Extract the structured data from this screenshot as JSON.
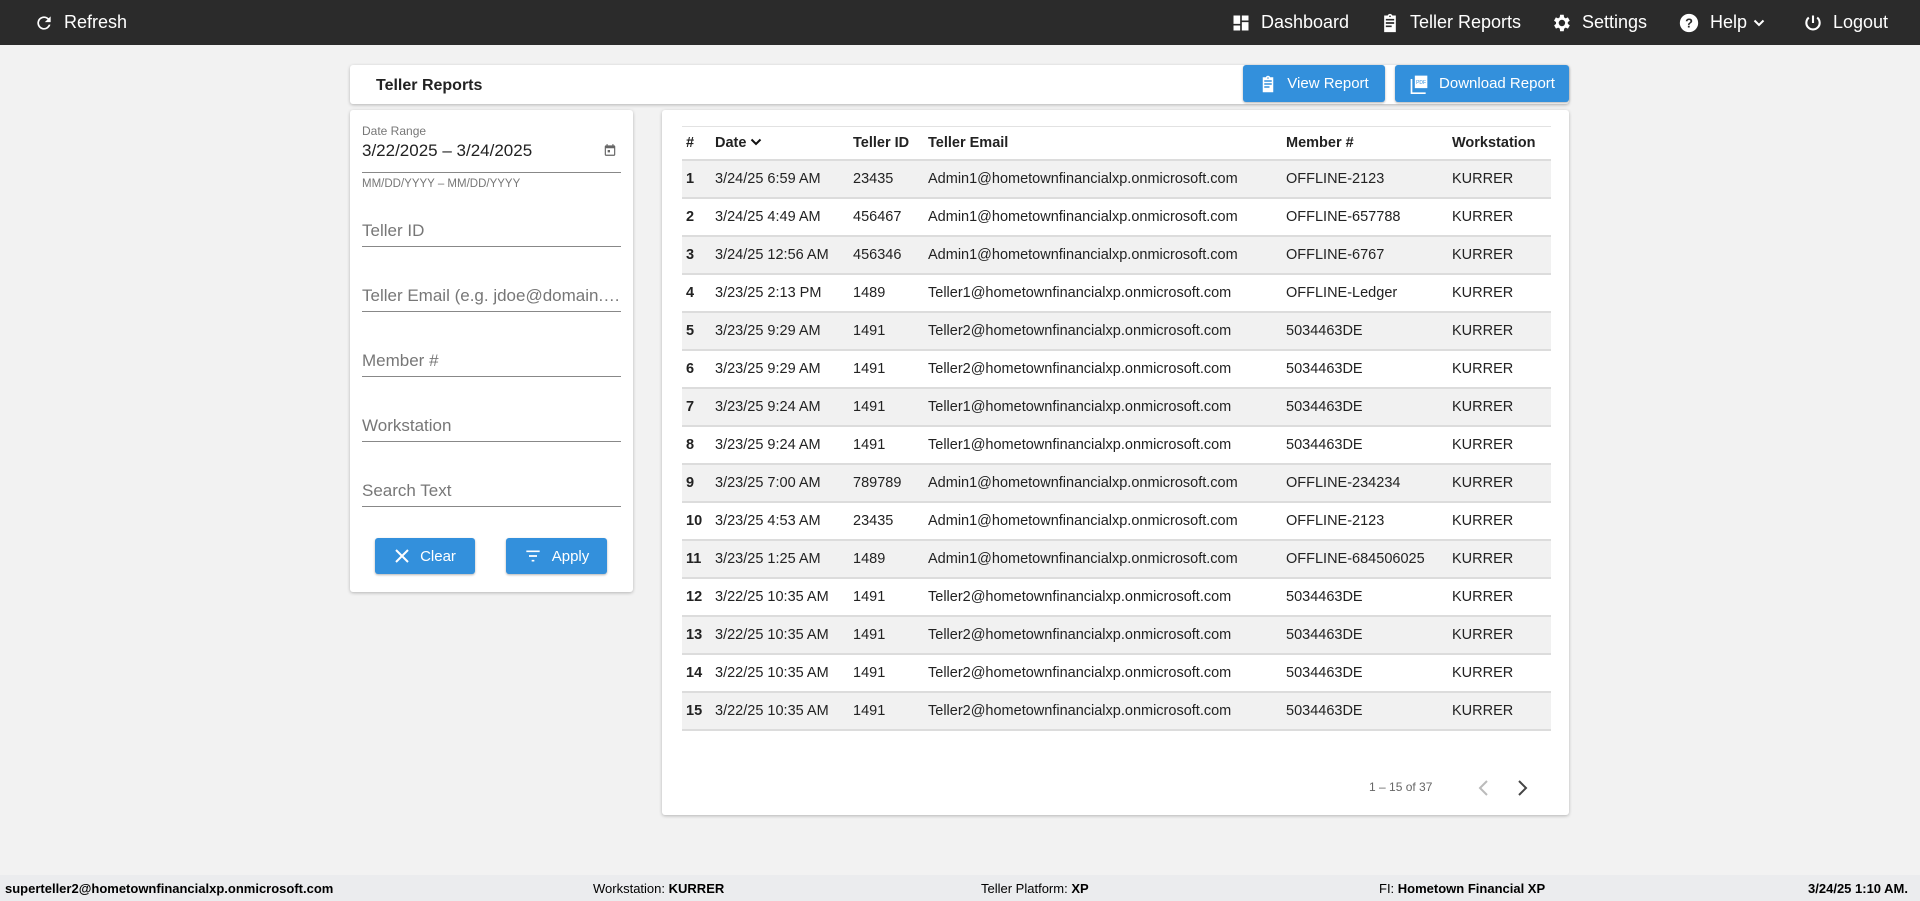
{
  "topbar": {
    "refresh": "Refresh",
    "nav": [
      {
        "label": "Dashboard",
        "icon": "dashboard-icon"
      },
      {
        "label": "Teller Reports",
        "icon": "clipboard-icon"
      },
      {
        "label": "Settings",
        "icon": "gear-icon"
      },
      {
        "label": "Help",
        "icon": "help-icon"
      },
      {
        "label": "Logout",
        "icon": "power-icon"
      }
    ]
  },
  "header": {
    "title": "Teller Reports",
    "view_report": "View Report",
    "download_report": "Download Report"
  },
  "filters": {
    "date_range_label": "Date Range",
    "date_range_value": "3/22/2025 – 3/24/2025",
    "date_hint": "MM/DD/YYYY – MM/DD/YYYY",
    "teller_id": "Teller ID",
    "teller_email": "Teller Email (e.g. jdoe@domain.com)",
    "member": "Member #",
    "workstation": "Workstation",
    "search": "Search Text",
    "clear": "Clear",
    "apply": "Apply"
  },
  "table": {
    "columns": [
      "#",
      "Date",
      "Teller ID",
      "Teller Email",
      "Member #",
      "Workstation"
    ],
    "sort_column": "Date",
    "sort_direction": "descending",
    "rows": [
      [
        "1",
        "3/24/25 6:59 AM",
        "23435",
        "Admin1@hometownfinancialxp.onmicrosoft.com",
        "OFFLINE-2123",
        "KURRER"
      ],
      [
        "2",
        "3/24/25 4:49 AM",
        "456467",
        "Admin1@hometownfinancialxp.onmicrosoft.com",
        "OFFLINE-657788",
        "KURRER"
      ],
      [
        "3",
        "3/24/25 12:56 AM",
        "456346",
        "Admin1@hometownfinancialxp.onmicrosoft.com",
        "OFFLINE-6767",
        "KURRER"
      ],
      [
        "4",
        "3/23/25 2:13 PM",
        "1489",
        "Teller1@hometownfinancialxp.onmicrosoft.com",
        "OFFLINE-Ledger",
        "KURRER"
      ],
      [
        "5",
        "3/23/25 9:29 AM",
        "1491",
        "Teller2@hometownfinancialxp.onmicrosoft.com",
        "5034463DE",
        "KURRER"
      ],
      [
        "6",
        "3/23/25 9:29 AM",
        "1491",
        "Teller2@hometownfinancialxp.onmicrosoft.com",
        "5034463DE",
        "KURRER"
      ],
      [
        "7",
        "3/23/25 9:24 AM",
        "1491",
        "Teller1@hometownfinancialxp.onmicrosoft.com",
        "5034463DE",
        "KURRER"
      ],
      [
        "8",
        "3/23/25 9:24 AM",
        "1491",
        "Teller1@hometownfinancialxp.onmicrosoft.com",
        "5034463DE",
        "KURRER"
      ],
      [
        "9",
        "3/23/25 7:00 AM",
        "789789",
        "Admin1@hometownfinancialxp.onmicrosoft.com",
        "OFFLINE-234234",
        "KURRER"
      ],
      [
        "10",
        "3/23/25 4:53 AM",
        "23435",
        "Admin1@hometownfinancialxp.onmicrosoft.com",
        "OFFLINE-2123",
        "KURRER"
      ],
      [
        "11",
        "3/23/25 1:25 AM",
        "1489",
        "Admin1@hometownfinancialxp.onmicrosoft.com",
        "OFFLINE-684506025",
        "KURRER"
      ],
      [
        "12",
        "3/22/25 10:35 AM",
        "1491",
        "Teller2@hometownfinancialxp.onmicrosoft.com",
        "5034463DE",
        "KURRER"
      ],
      [
        "13",
        "3/22/25 10:35 AM",
        "1491",
        "Teller2@hometownfinancialxp.onmicrosoft.com",
        "5034463DE",
        "KURRER"
      ],
      [
        "14",
        "3/22/25 10:35 AM",
        "1491",
        "Teller2@hometownfinancialxp.onmicrosoft.com",
        "5034463DE",
        "KURRER"
      ],
      [
        "15",
        "3/22/25 10:35 AM",
        "1491",
        "Teller2@hometownfinancialxp.onmicrosoft.com",
        "5034463DE",
        "KURRER"
      ]
    ]
  },
  "pagination": {
    "range": "1 – 15 of 37"
  },
  "footer": {
    "user": "superteller2@hometownfinancialxp.onmicrosoft.com",
    "workstation_label": "Workstation:",
    "workstation": "KURRER",
    "platform_label": "Teller Platform:",
    "platform": "XP",
    "fi_label": "FI:",
    "fi": "Hometown Financial XP",
    "datetime": "3/24/25 1:10 AM."
  },
  "colors": {
    "topbar": "#2b2b2b",
    "accent": "#3390dc",
    "stripe": "#f1f1f1"
  }
}
